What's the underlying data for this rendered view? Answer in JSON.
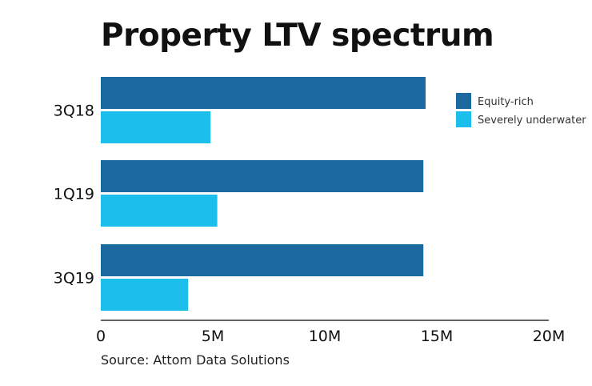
{
  "chart_data": {
    "type": "bar",
    "orientation": "horizontal",
    "title": "Property LTV spectrum",
    "source": "Source: Attom Data Solutions",
    "categories": [
      "3Q18",
      "1Q19",
      "3Q19"
    ],
    "series": [
      {
        "name": "Equity-rich",
        "color": "#1b699e",
        "values": [
          14.5,
          14.4,
          14.4
        ]
      },
      {
        "name": "Severely underwater",
        "color": "#1cbfeb",
        "values": [
          4.9,
          5.2,
          3.9
        ]
      }
    ],
    "xlim": [
      0,
      20
    ],
    "xticks": [
      0,
      5,
      10,
      15,
      20
    ],
    "xtick_labels": [
      "0",
      "5M",
      "10M",
      "15M",
      "20M"
    ],
    "xlabel": "",
    "ylabel": "",
    "grid": false,
    "legend_position": "top-right"
  }
}
